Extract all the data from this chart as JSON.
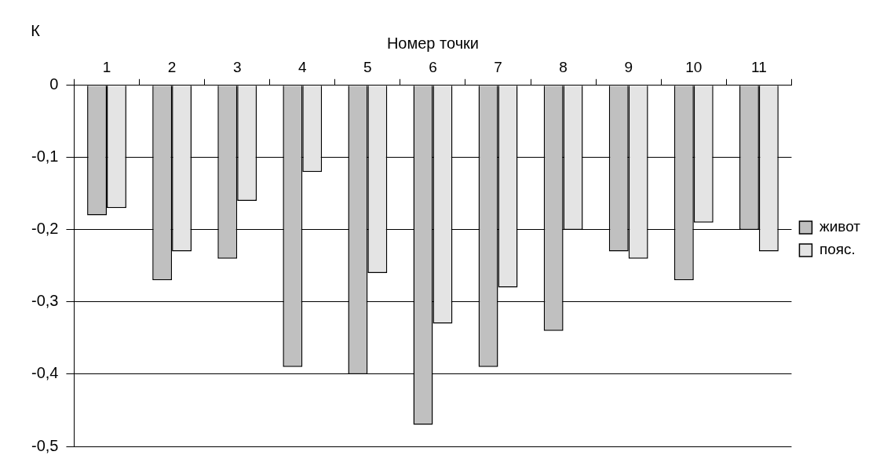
{
  "chart_data": {
    "type": "bar",
    "xlabel": "Номер точки",
    "ylabel": "К",
    "categories": [
      "1",
      "2",
      "3",
      "4",
      "5",
      "6",
      "7",
      "8",
      "9",
      "10",
      "11"
    ],
    "series": [
      {
        "name": "живот",
        "color": "#c0c0c0",
        "values": [
          -0.18,
          -0.27,
          -0.24,
          -0.39,
          -0.4,
          -0.47,
          -0.39,
          -0.34,
          -0.23,
          -0.27,
          -0.2
        ]
      },
      {
        "name": "пояс.",
        "color": "#e4e4e4",
        "values": [
          -0.17,
          -0.23,
          -0.16,
          -0.12,
          -0.26,
          -0.33,
          -0.28,
          -0.2,
          -0.24,
          -0.19,
          -0.23
        ]
      }
    ],
    "ylim": [
      -0.5,
      0
    ],
    "yticks": [
      {
        "value": -0.5,
        "label": "-0,5"
      },
      {
        "value": -0.4,
        "label": "-0,4"
      },
      {
        "value": -0.3,
        "label": "-0,3"
      },
      {
        "value": -0.2,
        "label": "-0,2"
      },
      {
        "value": -0.1,
        "label": "-0,1"
      },
      {
        "value": 0,
        "label": "0"
      }
    ],
    "grid": "y",
    "legend": "right"
  }
}
